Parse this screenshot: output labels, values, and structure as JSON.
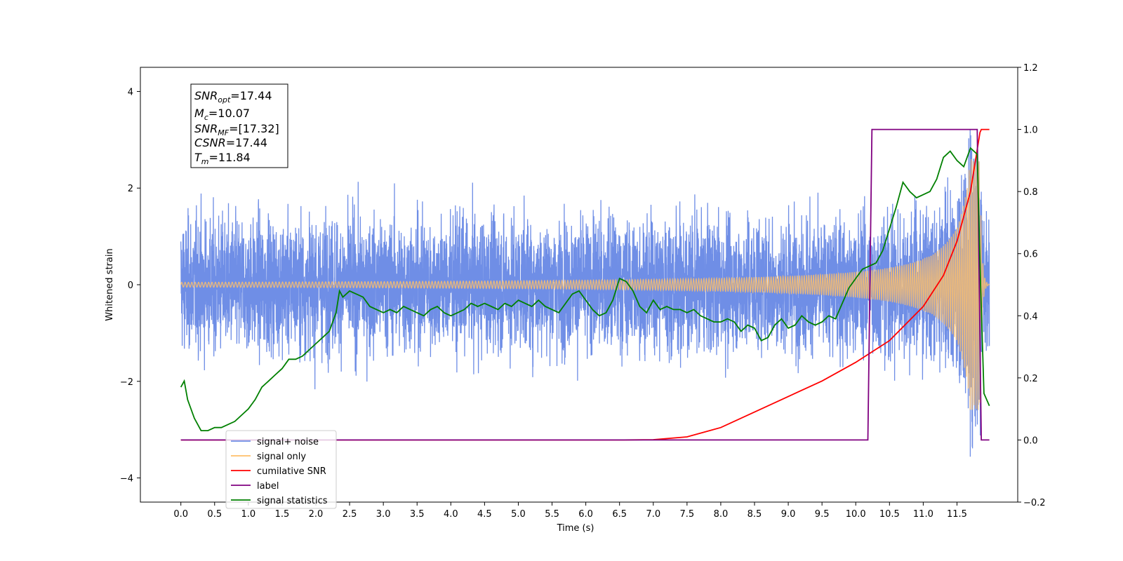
{
  "chart_data": {
    "type": "line",
    "xlabel": "Time (s)",
    "ylabel": "Whitened strain",
    "xlim": [
      -0.6,
      12.4
    ],
    "ylim": [
      -4.5,
      4.5
    ],
    "y2lim": [
      -0.2,
      1.2
    ],
    "x_ticks": [
      "0.0",
      "0.5",
      "1.0",
      "1.5",
      "2.0",
      "2.5",
      "3.0",
      "3.5",
      "4.0",
      "4.5",
      "5.0",
      "5.5",
      "6.0",
      "6.5",
      "7.0",
      "7.5",
      "8.0",
      "8.5",
      "9.0",
      "9.5",
      "10.0",
      "10.5",
      "11.0",
      "11.5"
    ],
    "y_ticks": [
      "−4",
      "−2",
      "0",
      "2",
      "4"
    ],
    "y2_ticks": [
      "−0.2",
      "0.0",
      "0.2",
      "0.4",
      "0.6",
      "0.8",
      "1.0",
      "1.2"
    ],
    "legend_position": "lower-left",
    "grid": false,
    "annotation": {
      "snr_opt": "=17.44",
      "mc": "=10.07",
      "snr_mf": "=[17.32]",
      "csnr": "=17.44",
      "tm": "=11.84"
    },
    "series": [
      {
        "name": "signal+ noise",
        "color": "#6f8ee6",
        "axis": "left",
        "description_values": {
          "x_start": 0.0,
          "x_end": 11.98,
          "noise_sigma": 1.0,
          "peak_max": 4.12,
          "peak_min": -4.1
        }
      },
      {
        "name": "signal only",
        "color": "#ffbf69",
        "axis": "left",
        "description_values": {
          "x_start": 0.0,
          "x_end": 11.98,
          "merger_time": 11.84,
          "peak_amplitude": 2.6
        }
      },
      {
        "name": "cumilative SNR",
        "color": "#ff0000",
        "axis": "right",
        "x": [
          0.0,
          6.5,
          7.0,
          7.5,
          8.0,
          8.5,
          9.0,
          9.5,
          10.0,
          10.5,
          11.0,
          11.3,
          11.5,
          11.7,
          11.84,
          11.86,
          11.98
        ],
        "y": [
          0.0,
          0.0,
          0.001,
          0.01,
          0.04,
          0.09,
          0.14,
          0.19,
          0.25,
          0.32,
          0.43,
          0.53,
          0.64,
          0.8,
          0.99,
          1.0,
          1.0
        ]
      },
      {
        "name": "label",
        "color": "#800080",
        "axis": "right",
        "x": [
          0.0,
          10.18,
          10.24,
          11.8,
          11.86,
          11.98
        ],
        "y": [
          0.0,
          0.0,
          1.0,
          1.0,
          0.0,
          0.0
        ]
      },
      {
        "name": "signal statistics",
        "color": "#008000",
        "axis": "right",
        "x": [
          0.0,
          0.05,
          0.1,
          0.2,
          0.3,
          0.4,
          0.5,
          0.6,
          0.7,
          0.8,
          0.9,
          1.0,
          1.1,
          1.2,
          1.3,
          1.4,
          1.5,
          1.6,
          1.7,
          1.8,
          1.9,
          2.0,
          2.1,
          2.2,
          2.3,
          2.35,
          2.4,
          2.5,
          2.6,
          2.7,
          2.8,
          2.9,
          3.0,
          3.1,
          3.2,
          3.3,
          3.4,
          3.5,
          3.6,
          3.7,
          3.8,
          3.9,
          4.0,
          4.1,
          4.2,
          4.3,
          4.4,
          4.5,
          4.6,
          4.7,
          4.8,
          4.9,
          5.0,
          5.1,
          5.2,
          5.3,
          5.4,
          5.5,
          5.6,
          5.7,
          5.8,
          5.9,
          6.0,
          6.1,
          6.2,
          6.3,
          6.4,
          6.5,
          6.6,
          6.7,
          6.8,
          6.9,
          7.0,
          7.1,
          7.2,
          7.3,
          7.4,
          7.5,
          7.6,
          7.7,
          7.8,
          7.9,
          8.0,
          8.1,
          8.2,
          8.3,
          8.4,
          8.5,
          8.6,
          8.7,
          8.8,
          8.9,
          9.0,
          9.1,
          9.2,
          9.3,
          9.4,
          9.5,
          9.6,
          9.7,
          9.8,
          9.9,
          10.0,
          10.1,
          10.2,
          10.3,
          10.4,
          10.5,
          10.6,
          10.7,
          10.8,
          10.9,
          11.0,
          11.1,
          11.2,
          11.3,
          11.4,
          11.5,
          11.6,
          11.7,
          11.8,
          11.85,
          11.9,
          11.98
        ],
        "y": [
          0.17,
          0.19,
          0.13,
          0.07,
          0.03,
          0.03,
          0.04,
          0.04,
          0.05,
          0.06,
          0.08,
          0.1,
          0.13,
          0.17,
          0.19,
          0.21,
          0.23,
          0.26,
          0.26,
          0.27,
          0.29,
          0.31,
          0.33,
          0.35,
          0.41,
          0.48,
          0.46,
          0.48,
          0.47,
          0.46,
          0.43,
          0.42,
          0.41,
          0.42,
          0.41,
          0.43,
          0.42,
          0.41,
          0.4,
          0.42,
          0.43,
          0.41,
          0.4,
          0.41,
          0.42,
          0.44,
          0.43,
          0.44,
          0.43,
          0.42,
          0.44,
          0.43,
          0.45,
          0.44,
          0.43,
          0.45,
          0.43,
          0.42,
          0.41,
          0.44,
          0.47,
          0.48,
          0.45,
          0.42,
          0.4,
          0.41,
          0.45,
          0.52,
          0.51,
          0.48,
          0.43,
          0.41,
          0.45,
          0.42,
          0.43,
          0.42,
          0.42,
          0.41,
          0.42,
          0.4,
          0.39,
          0.38,
          0.38,
          0.39,
          0.38,
          0.35,
          0.37,
          0.36,
          0.32,
          0.33,
          0.37,
          0.39,
          0.36,
          0.37,
          0.4,
          0.38,
          0.37,
          0.38,
          0.4,
          0.39,
          0.44,
          0.49,
          0.52,
          0.55,
          0.56,
          0.57,
          0.61,
          0.68,
          0.75,
          0.83,
          0.8,
          0.78,
          0.79,
          0.8,
          0.84,
          0.91,
          0.93,
          0.9,
          0.88,
          0.94,
          0.92,
          0.5,
          0.15,
          0.11
        ]
      }
    ]
  }
}
